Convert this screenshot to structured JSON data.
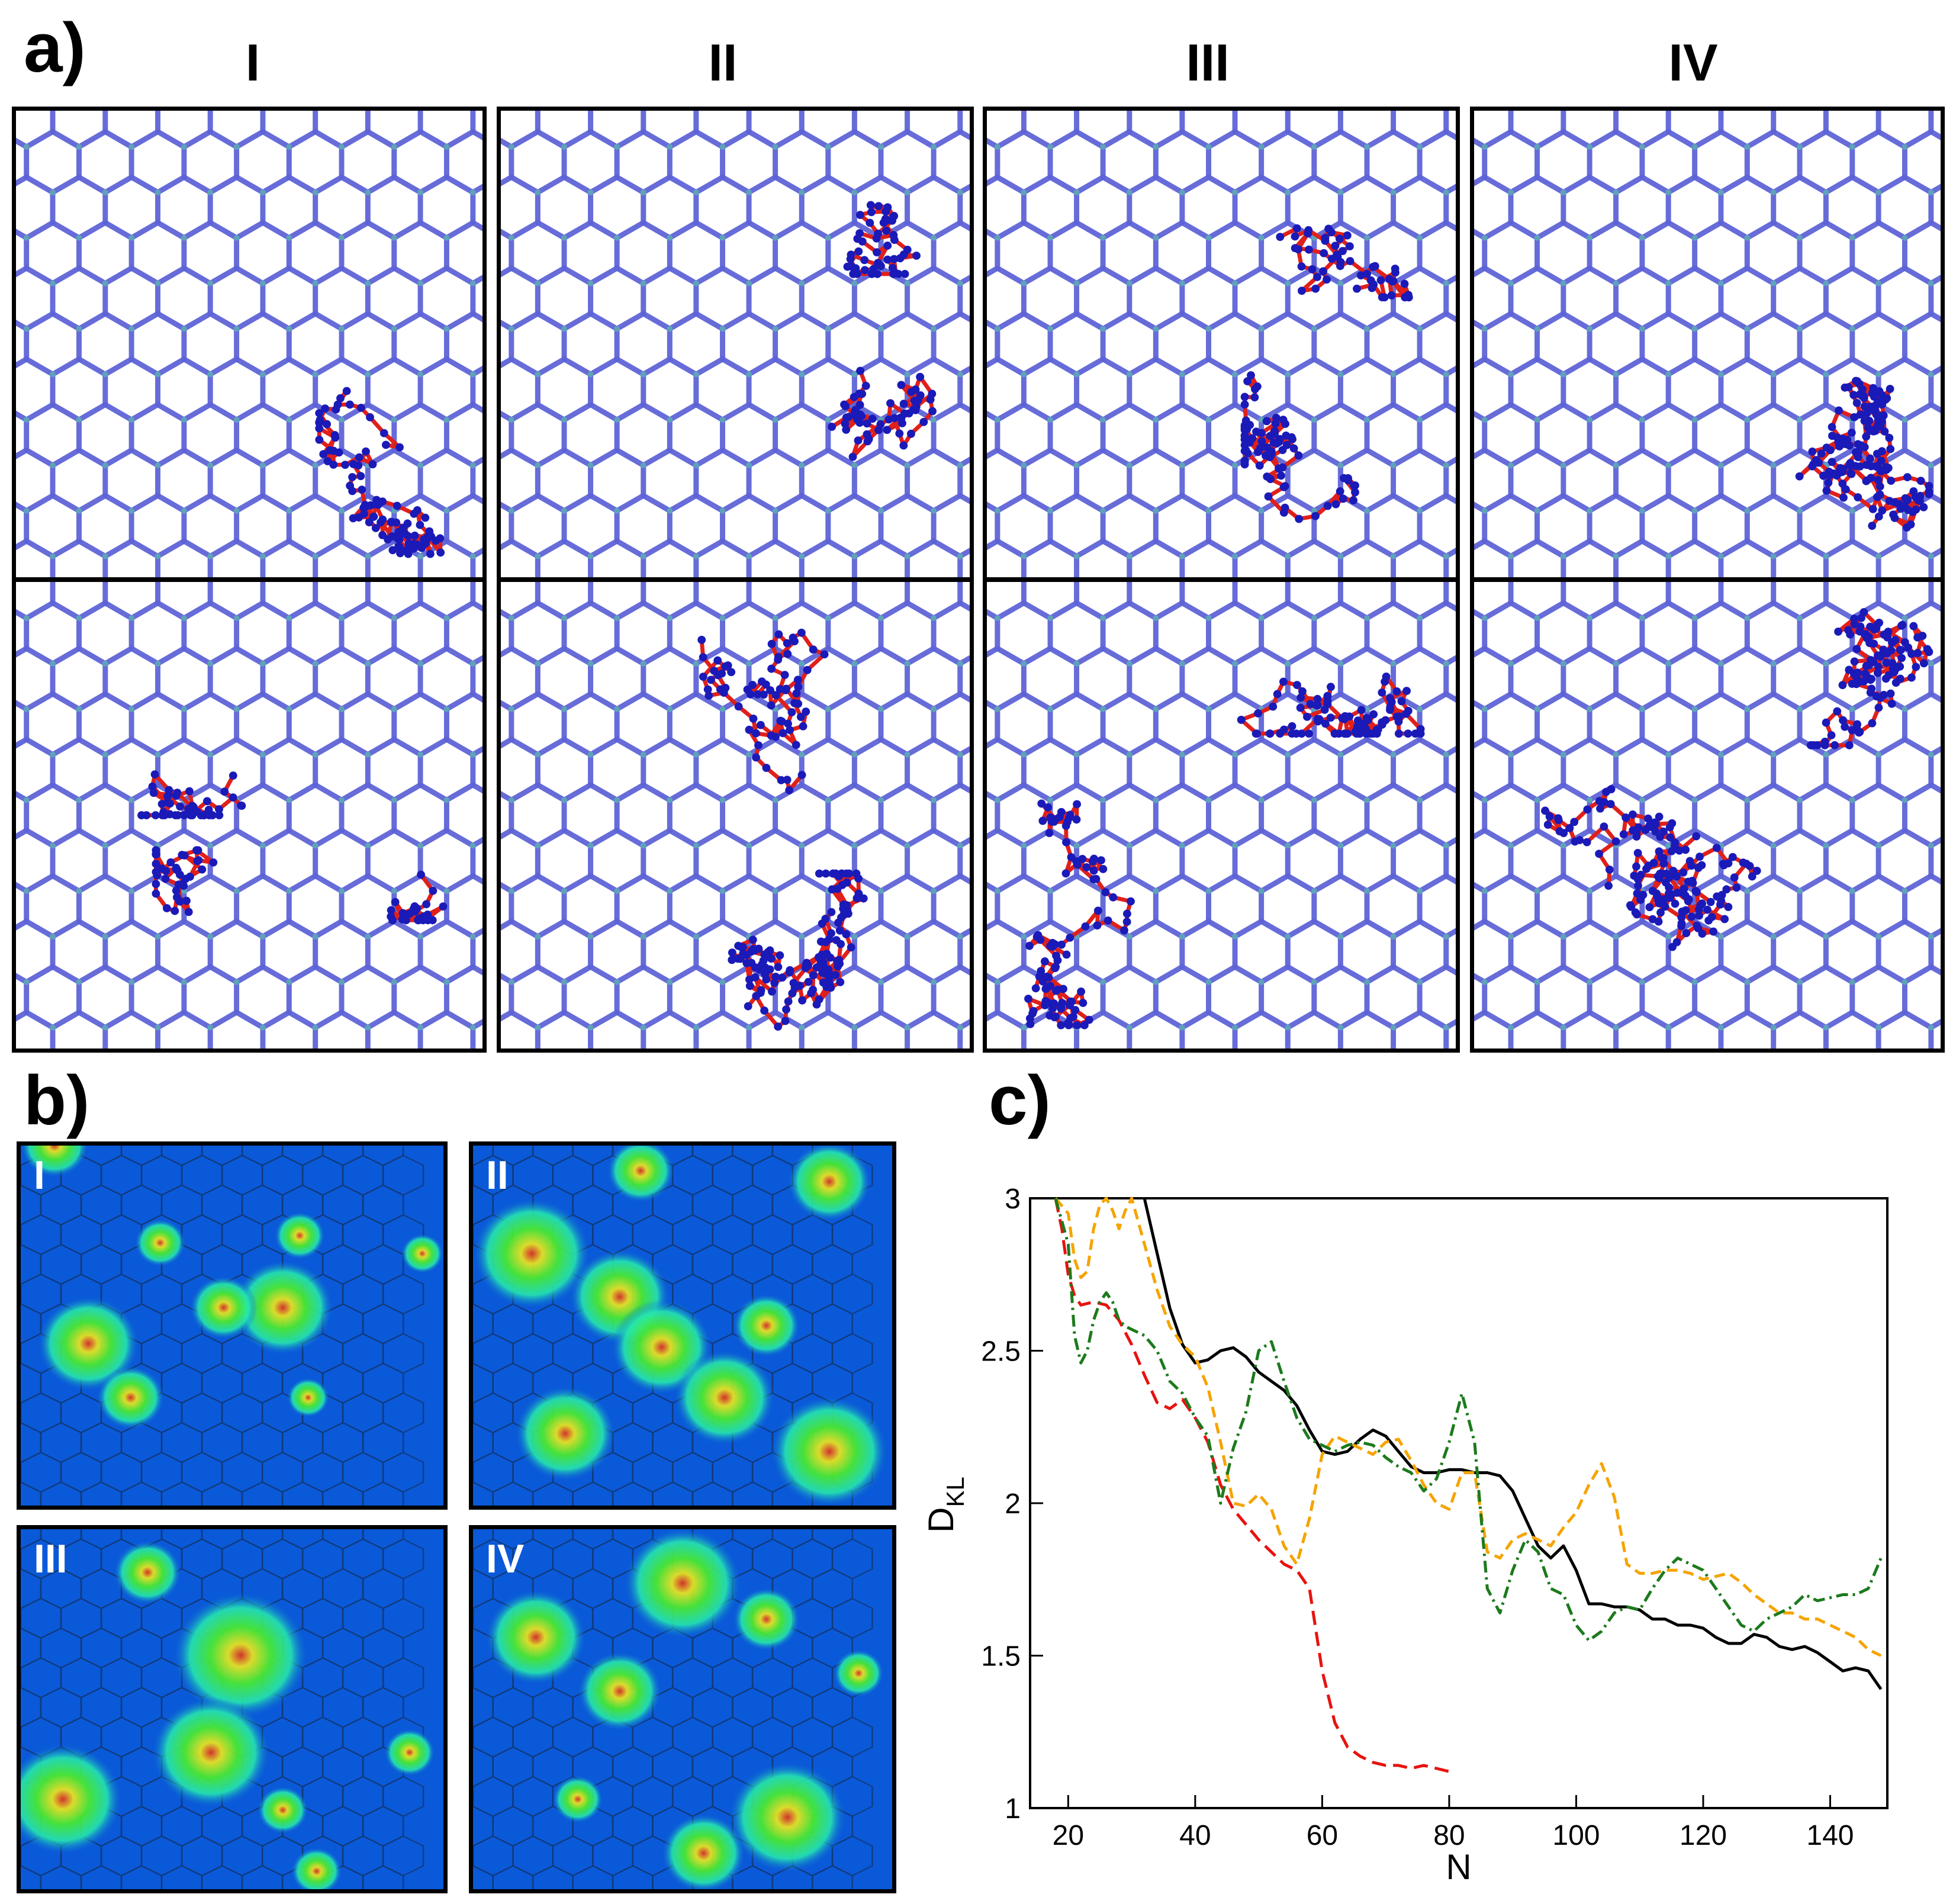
{
  "panel_labels": {
    "a": "a)",
    "b": "b)",
    "c": "c)"
  },
  "panel_a": {
    "column_titles": [
      "I",
      "II",
      "III",
      "IV"
    ],
    "colors": {
      "lattice": "#5a5fd6",
      "lattice_node": "#5fb3b3",
      "chain_bond": "#e0201a",
      "chain_atom": "#1a1ab8"
    }
  },
  "panel_b": {
    "labels": [
      "I",
      "II",
      "III",
      "IV"
    ],
    "colors": {
      "background": "#0a59d8",
      "low": "#25e6b0",
      "mid": "#4cf02a",
      "high": "#f2e91a",
      "peak": "#e8301a"
    }
  },
  "chart_data": {
    "type": "line",
    "xlabel": "N",
    "ylabel": "D",
    "ylabel_subscript": "KL",
    "xlim": [
      14,
      149
    ],
    "ylim": [
      1,
      3
    ],
    "xticks": [
      20,
      40,
      60,
      80,
      100,
      120,
      140
    ],
    "yticks": [
      1,
      1.5,
      2,
      2.5,
      3
    ],
    "xtick_labels": [
      "20",
      "40",
      "60",
      "80",
      "100",
      "120",
      "140"
    ],
    "ytick_labels": [
      "1",
      "1.5",
      "2",
      "2.5",
      "3"
    ],
    "series": [
      {
        "name": "black",
        "color": "#000000",
        "dash": "",
        "x": [
          32,
          34,
          36,
          38,
          40,
          42,
          44,
          46,
          48,
          50,
          52,
          54,
          56,
          58,
          60,
          62,
          64,
          66,
          68,
          70,
          72,
          74,
          76,
          78,
          80,
          82,
          84,
          86,
          88,
          90,
          92,
          94,
          96,
          98,
          100,
          102,
          104,
          106,
          108,
          110,
          112,
          114,
          116,
          118,
          120,
          122,
          124,
          126,
          128,
          130,
          132,
          134,
          136,
          138,
          140,
          142,
          144,
          146,
          148
        ],
        "y": [
          3.0,
          2.82,
          2.64,
          2.52,
          2.46,
          2.47,
          2.5,
          2.51,
          2.48,
          2.43,
          2.4,
          2.37,
          2.32,
          2.24,
          2.17,
          2.16,
          2.17,
          2.21,
          2.24,
          2.22,
          2.17,
          2.12,
          2.1,
          2.1,
          2.11,
          2.11,
          2.1,
          2.1,
          2.09,
          2.04,
          1.95,
          1.86,
          1.82,
          1.86,
          1.78,
          1.67,
          1.67,
          1.66,
          1.66,
          1.65,
          1.62,
          1.62,
          1.6,
          1.6,
          1.59,
          1.56,
          1.54,
          1.54,
          1.57,
          1.56,
          1.53,
          1.52,
          1.53,
          1.51,
          1.48,
          1.45,
          1.46,
          1.45,
          1.39
        ]
      },
      {
        "name": "red",
        "color": "#e8120e",
        "dash": "24 12",
        "x": [
          18,
          19,
          20,
          21,
          22,
          24,
          26,
          28,
          30,
          32,
          34,
          36,
          38,
          40,
          42,
          44,
          46,
          48,
          50,
          52,
          54,
          56,
          58,
          60,
          62,
          64,
          66,
          68,
          70,
          72,
          74,
          76,
          78,
          80
        ],
        "y": [
          3.0,
          2.9,
          2.75,
          2.68,
          2.65,
          2.66,
          2.65,
          2.6,
          2.52,
          2.42,
          2.33,
          2.31,
          2.34,
          2.28,
          2.2,
          2.06,
          1.98,
          1.93,
          1.88,
          1.84,
          1.8,
          1.78,
          1.72,
          1.45,
          1.28,
          1.2,
          1.17,
          1.15,
          1.14,
          1.14,
          1.13,
          1.14,
          1.13,
          1.12
        ]
      },
      {
        "name": "orange",
        "color": "#f5a400",
        "dash": "18 10",
        "x": [
          18,
          20,
          21,
          22,
          23,
          24,
          25,
          26,
          27,
          28,
          29,
          30,
          32,
          34,
          36,
          38,
          40,
          42,
          44,
          46,
          48,
          50,
          52,
          54,
          56,
          58,
          60,
          62,
          64,
          66,
          68,
          70,
          72,
          74,
          76,
          78,
          80,
          82,
          84,
          86,
          88,
          90,
          92,
          94,
          96,
          98,
          100,
          102,
          104,
          106,
          108,
          110,
          112,
          114,
          116,
          118,
          120,
          122,
          124,
          126,
          128,
          130,
          132,
          134,
          136,
          138,
          140,
          142,
          144,
          146,
          148
        ],
        "y": [
          3.0,
          2.95,
          2.8,
          2.74,
          2.76,
          2.9,
          2.98,
          3.0,
          2.96,
          2.9,
          2.96,
          3.0,
          2.85,
          2.7,
          2.58,
          2.52,
          2.48,
          2.38,
          2.2,
          2.0,
          1.99,
          2.03,
          1.98,
          1.86,
          1.8,
          1.95,
          2.16,
          2.22,
          2.2,
          2.18,
          2.16,
          2.2,
          2.21,
          2.14,
          2.06,
          2.0,
          1.98,
          2.1,
          2.1,
          1.84,
          1.82,
          1.88,
          1.9,
          1.88,
          1.86,
          1.92,
          1.97,
          2.06,
          2.13,
          2.02,
          1.8,
          1.77,
          1.77,
          1.78,
          1.78,
          1.77,
          1.75,
          1.76,
          1.77,
          1.74,
          1.7,
          1.67,
          1.64,
          1.64,
          1.62,
          1.62,
          1.6,
          1.58,
          1.56,
          1.52,
          1.5
        ]
      },
      {
        "name": "green",
        "color": "#1d7a1d",
        "dash": "20 8 4 8",
        "x": [
          18,
          20,
          21,
          22,
          23,
          24,
          25,
          26,
          27,
          28,
          29,
          30,
          32,
          34,
          36,
          38,
          40,
          42,
          44,
          46,
          48,
          50,
          52,
          54,
          56,
          58,
          60,
          62,
          64,
          66,
          68,
          70,
          72,
          74,
          76,
          78,
          80,
          82,
          84,
          86,
          88,
          90,
          92,
          94,
          96,
          98,
          100,
          102,
          104,
          106,
          108,
          110,
          112,
          114,
          116,
          118,
          120,
          122,
          124,
          126,
          128,
          130,
          132,
          134,
          136,
          138,
          140,
          142,
          144,
          146,
          148
        ],
        "y": [
          3.0,
          2.85,
          2.55,
          2.46,
          2.5,
          2.6,
          2.66,
          2.69,
          2.66,
          2.6,
          2.58,
          2.57,
          2.55,
          2.5,
          2.4,
          2.36,
          2.28,
          2.22,
          2.0,
          2.18,
          2.3,
          2.5,
          2.53,
          2.4,
          2.28,
          2.21,
          2.19,
          2.17,
          2.19,
          2.2,
          2.19,
          2.15,
          2.12,
          2.1,
          2.04,
          2.08,
          2.2,
          2.36,
          2.2,
          1.72,
          1.64,
          1.78,
          1.88,
          1.84,
          1.72,
          1.7,
          1.6,
          1.55,
          1.58,
          1.64,
          1.66,
          1.65,
          1.72,
          1.78,
          1.82,
          1.8,
          1.78,
          1.72,
          1.66,
          1.6,
          1.58,
          1.62,
          1.64,
          1.66,
          1.7,
          1.68,
          1.69,
          1.7,
          1.7,
          1.72,
          1.82
        ]
      }
    ]
  }
}
